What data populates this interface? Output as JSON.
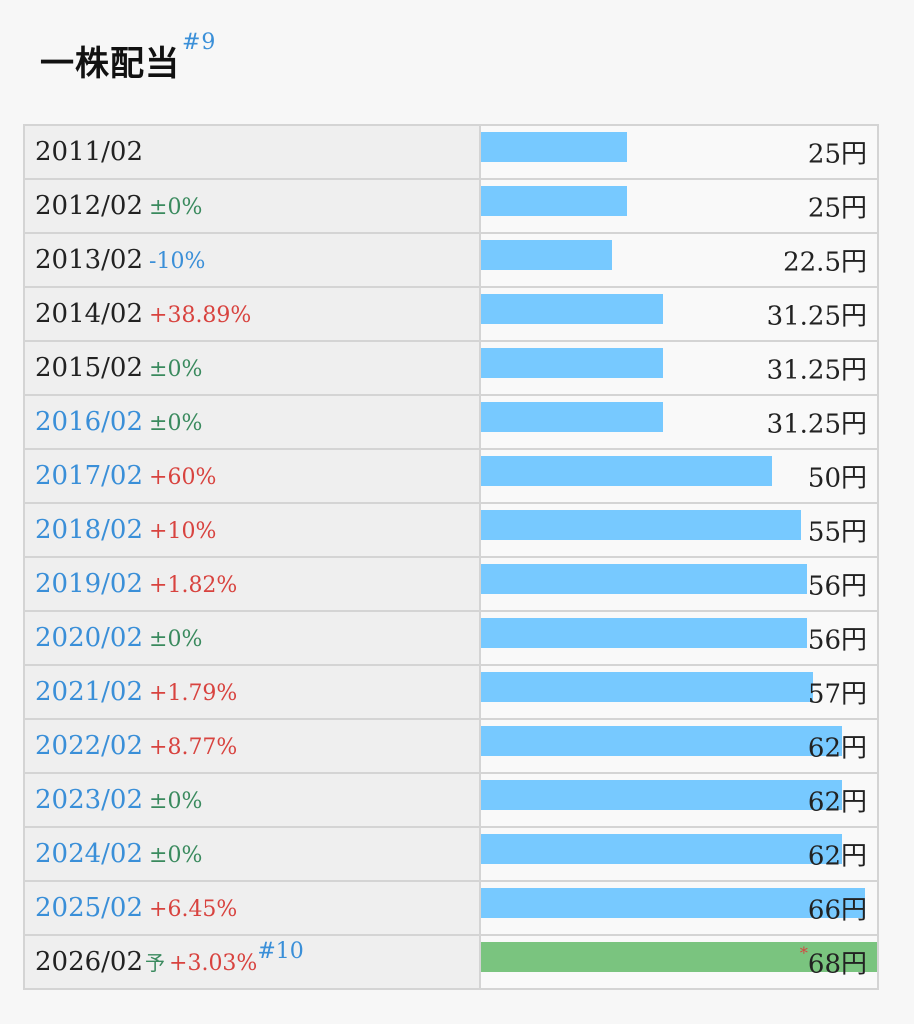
{
  "heading": {
    "title": "一株配当",
    "footnote": "#9"
  },
  "colors": {
    "bar": "#77c9ff",
    "bar_forecast": "#7ac47f",
    "up": "#d8433f",
    "down": "#3a8fd8",
    "flat": "#3a8a5e"
  },
  "chart_data": {
    "type": "bar",
    "orientation": "horizontal",
    "xlim": [
      0,
      68
    ],
    "unit": "円",
    "rows": [
      {
        "period": "2011/02",
        "change": "",
        "change_dir": "none",
        "value": 25,
        "value_label": "25円",
        "style": "hist"
      },
      {
        "period": "2012/02",
        "change": "±0%",
        "change_dir": "flat",
        "value": 25,
        "value_label": "25円",
        "style": "hist"
      },
      {
        "period": "2013/02",
        "change": "-10%",
        "change_dir": "down",
        "value": 22.5,
        "value_label": "22.5円",
        "style": "hist"
      },
      {
        "period": "2014/02",
        "change": "+38.89%",
        "change_dir": "up",
        "value": 31.25,
        "value_label": "31.25円",
        "style": "hist"
      },
      {
        "period": "2015/02",
        "change": "±0%",
        "change_dir": "flat",
        "value": 31.25,
        "value_label": "31.25円",
        "style": "hist"
      },
      {
        "period": "2016/02",
        "change": "±0%",
        "change_dir": "flat",
        "value": 31.25,
        "value_label": "31.25円",
        "style": "cur"
      },
      {
        "period": "2017/02",
        "change": "+60%",
        "change_dir": "up",
        "value": 50,
        "value_label": "50円",
        "style": "cur"
      },
      {
        "period": "2018/02",
        "change": "+10%",
        "change_dir": "up",
        "value": 55,
        "value_label": "55円",
        "style": "cur"
      },
      {
        "period": "2019/02",
        "change": "+1.82%",
        "change_dir": "up",
        "value": 56,
        "value_label": "56円",
        "style": "cur"
      },
      {
        "period": "2020/02",
        "change": "±0%",
        "change_dir": "flat",
        "value": 56,
        "value_label": "56円",
        "style": "cur"
      },
      {
        "period": "2021/02",
        "change": "+1.79%",
        "change_dir": "up",
        "value": 57,
        "value_label": "57円",
        "style": "cur"
      },
      {
        "period": "2022/02",
        "change": "+8.77%",
        "change_dir": "up",
        "value": 62,
        "value_label": "62円",
        "style": "cur"
      },
      {
        "period": "2023/02",
        "change": "±0%",
        "change_dir": "flat",
        "value": 62,
        "value_label": "62円",
        "style": "cur"
      },
      {
        "period": "2024/02",
        "change": "±0%",
        "change_dir": "flat",
        "value": 62,
        "value_label": "62円",
        "style": "cur"
      },
      {
        "period": "2025/02",
        "change": "+6.45%",
        "change_dir": "up",
        "value": 66,
        "value_label": "66円",
        "style": "cur"
      }
    ],
    "forecast": {
      "period": "2026/02",
      "mark": "予",
      "change": "+3.03%",
      "change_dir": "up",
      "footnote": "#10",
      "asterisk": "*",
      "value": 68,
      "value_label": "68円"
    }
  }
}
